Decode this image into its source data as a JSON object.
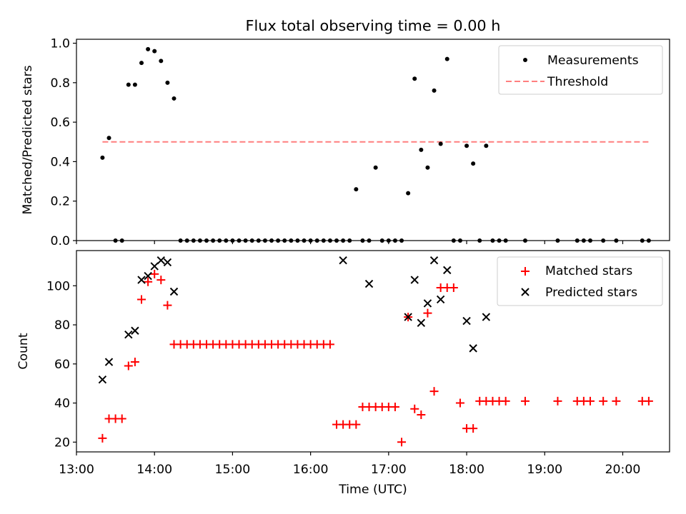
{
  "title": "Flux total observing time = 0.00 h",
  "colors": {
    "matched": "#ff0000",
    "threshold": "#ff7f7f",
    "measurement": "#000000",
    "predicted": "#000000"
  },
  "chart_data": [
    {
      "type": "scatter",
      "panel": "top",
      "ylabel": "Matched/Predicted stars",
      "xlim": [
        "13:00",
        "20:36"
      ],
      "ylim": [
        0,
        1.02
      ],
      "yticks": [
        "0.0",
        "0.2",
        "0.4",
        "0.6",
        "0.8",
        "1.0"
      ],
      "grid": false,
      "legend": {
        "position": "top-right",
        "entries": [
          "Measurements",
          "Threshold"
        ]
      },
      "series": [
        {
          "name": "Measurements",
          "x": [
            "13:20",
            "13:25",
            "13:30",
            "13:35",
            "13:40",
            "13:45",
            "13:50",
            "13:55",
            "14:00",
            "14:05",
            "14:10",
            "14:15",
            "14:20",
            "14:25",
            "14:30",
            "14:35",
            "14:40",
            "14:45",
            "14:50",
            "14:55",
            "15:00",
            "15:05",
            "15:10",
            "15:15",
            "15:20",
            "15:25",
            "15:30",
            "15:35",
            "15:40",
            "15:45",
            "15:50",
            "15:55",
            "16:00",
            "16:05",
            "16:10",
            "16:15",
            "16:20",
            "16:25",
            "16:30",
            "16:35",
            "16:40",
            "16:45",
            "16:50",
            "16:55",
            "17:00",
            "17:05",
            "17:10",
            "17:15",
            "17:20",
            "17:25",
            "17:30",
            "17:35",
            "17:40",
            "17:45",
            "17:50",
            "17:55",
            "18:00",
            "18:05",
            "18:10",
            "18:15",
            "18:20",
            "18:25",
            "18:30",
            "18:45",
            "19:10",
            "19:25",
            "19:30",
            "19:35",
            "19:45",
            "19:55",
            "20:15",
            "20:20"
          ],
          "y": [
            0.42,
            0.52,
            0.0,
            0.0,
            0.79,
            0.79,
            0.9,
            0.97,
            0.96,
            0.91,
            0.8,
            0.72,
            0.0,
            0.0,
            0.0,
            0.0,
            0.0,
            0.0,
            0.0,
            0.0,
            0.0,
            0.0,
            0.0,
            0.0,
            0.0,
            0.0,
            0.0,
            0.0,
            0.0,
            0.0,
            0.0,
            0.0,
            0.0,
            0.0,
            0.0,
            0.0,
            0.0,
            0.0,
            0.0,
            0.26,
            0.0,
            0.0,
            0.37,
            0.0,
            0.0,
            0.0,
            0.0,
            0.24,
            0.82,
            0.46,
            0.37,
            0.76,
            0.49,
            0.92,
            0.0,
            0.0,
            0.48,
            0.39,
            0.0,
            0.48,
            0.0,
            0.0,
            0.0,
            0.0,
            0.0,
            0.0,
            0.0,
            0.0,
            0.0,
            0.0,
            0.0,
            0.0
          ]
        },
        {
          "name": "Threshold",
          "x": [
            "13:20",
            "20:20"
          ],
          "y": [
            0.5,
            0.5
          ]
        }
      ]
    },
    {
      "type": "scatter",
      "panel": "bottom",
      "xlabel": "Time (UTC)",
      "ylabel": "Count",
      "xlim": [
        "13:00",
        "20:36"
      ],
      "ylim": [
        15,
        118
      ],
      "xticks": [
        "13:00",
        "14:00",
        "15:00",
        "16:00",
        "17:00",
        "18:00",
        "19:00",
        "20:00"
      ],
      "yticks": [
        "20",
        "40",
        "60",
        "80",
        "100"
      ],
      "grid": false,
      "legend": {
        "position": "top-right",
        "entries": [
          "Matched stars",
          "Predicted stars"
        ]
      },
      "series": [
        {
          "name": "Matched stars",
          "x": [
            "13:20",
            "13:25",
            "13:30",
            "13:35",
            "13:40",
            "13:45",
            "13:50",
            "13:55",
            "14:00",
            "14:05",
            "14:10",
            "14:15",
            "14:20",
            "14:25",
            "14:30",
            "14:35",
            "14:40",
            "14:45",
            "14:50",
            "14:55",
            "15:00",
            "15:05",
            "15:10",
            "15:15",
            "15:20",
            "15:25",
            "15:30",
            "15:35",
            "15:40",
            "15:45",
            "15:50",
            "15:55",
            "16:00",
            "16:05",
            "16:10",
            "16:15",
            "16:20",
            "16:25",
            "16:30",
            "16:35",
            "16:40",
            "16:45",
            "16:50",
            "16:55",
            "17:00",
            "17:05",
            "17:10",
            "17:15",
            "17:20",
            "17:25",
            "17:30",
            "17:35",
            "17:40",
            "17:45",
            "17:50",
            "17:55",
            "18:00",
            "18:05",
            "18:10",
            "18:15",
            "18:20",
            "18:25",
            "18:30",
            "18:45",
            "19:10",
            "19:25",
            "19:30",
            "19:35",
            "19:45",
            "19:55",
            "20:15",
            "20:20"
          ],
          "y": [
            22,
            32,
            32,
            32,
            59,
            61,
            93,
            102,
            106,
            103,
            90,
            70,
            70,
            70,
            70,
            70,
            70,
            70,
            70,
            70,
            70,
            70,
            70,
            70,
            70,
            70,
            70,
            70,
            70,
            70,
            70,
            70,
            70,
            70,
            70,
            70,
            29,
            29,
            29,
            29,
            38,
            38,
            38,
            38,
            38,
            38,
            20,
            84,
            37,
            34,
            86,
            46,
            99,
            99,
            99,
            40,
            27,
            27,
            41,
            41,
            41,
            41,
            41,
            41,
            41,
            41,
            41,
            41,
            41,
            41,
            41,
            41
          ]
        },
        {
          "name": "Predicted stars",
          "x": [
            "13:20",
            "13:25",
            "13:40",
            "13:45",
            "13:50",
            "13:55",
            "14:00",
            "14:05",
            "14:10",
            "14:15",
            "16:25",
            "16:45",
            "17:15",
            "17:20",
            "17:25",
            "17:30",
            "17:35",
            "17:40",
            "17:45",
            "18:00",
            "18:05",
            "18:15"
          ],
          "y": [
            52,
            61,
            75,
            77,
            103,
            105,
            110,
            113,
            112,
            97,
            113,
            101,
            84,
            103,
            81,
            91,
            113,
            93,
            108,
            82,
            68,
            84
          ]
        }
      ]
    }
  ]
}
